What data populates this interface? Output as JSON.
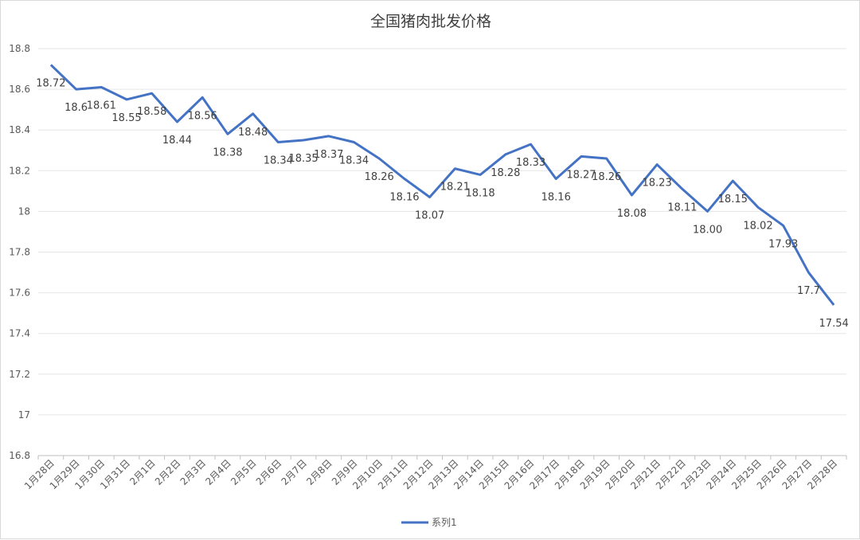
{
  "chart_data": {
    "type": "line",
    "title": "全国猪肉批发价格",
    "xlabel": "",
    "ylabel": "",
    "ylim": [
      16.8,
      18.8
    ],
    "y_ticks": [
      "16.8",
      "17",
      "17.2",
      "17.4",
      "17.6",
      "17.8",
      "18",
      "18.2",
      "18.4",
      "18.6",
      "18.8"
    ],
    "y_tick_values": [
      16.8,
      17.0,
      17.2,
      17.4,
      17.6,
      17.8,
      18.0,
      18.2,
      18.4,
      18.6,
      18.8
    ],
    "grid": true,
    "legend_position": "bottom",
    "line_color": "#4472C4",
    "categories": [
      "1月28日",
      "1月29日",
      "1月30日",
      "1月31日",
      "2月1日",
      "2月2日",
      "2月3日",
      "2月4日",
      "2月5日",
      "2月6日",
      "2月7日",
      "2月8日",
      "2月9日",
      "2月10日",
      "2月11日",
      "2月12日",
      "2月13日",
      "2月14日",
      "2月15日",
      "2月16日",
      "2月17日",
      "2月18日",
      "2月19日",
      "2月20日",
      "2月21日",
      "2月22日",
      "2月23日",
      "2月24日",
      "2月25日",
      "2月26日",
      "2月27日",
      "2月28日"
    ],
    "series": [
      {
        "name": "系列1",
        "values": [
          18.72,
          18.6,
          18.61,
          18.55,
          18.58,
          18.44,
          18.56,
          18.38,
          18.48,
          18.34,
          18.35,
          18.37,
          18.34,
          18.26,
          18.16,
          18.07,
          18.21,
          18.18,
          18.28,
          18.33,
          18.16,
          18.27,
          18.26,
          18.08,
          18.23,
          18.11,
          18.0,
          18.15,
          18.02,
          17.93,
          17.7,
          17.54
        ],
        "labels": [
          "18.72",
          "18.6",
          "18.61",
          "18.55",
          "18.58",
          "18.44",
          "18.56",
          "18.38",
          "18.48",
          "18.34",
          "18.35",
          "18.37",
          "18.34",
          "18.26",
          "18.16",
          "18.07",
          "18.21",
          "18.18",
          "18.28",
          "18.33",
          "18.16",
          "18.27",
          "18.26",
          "18.08",
          "18.23",
          "18.11",
          "18.00",
          "18.15",
          "18.02",
          "17.93",
          "17.7",
          "17.54"
        ]
      }
    ]
  }
}
